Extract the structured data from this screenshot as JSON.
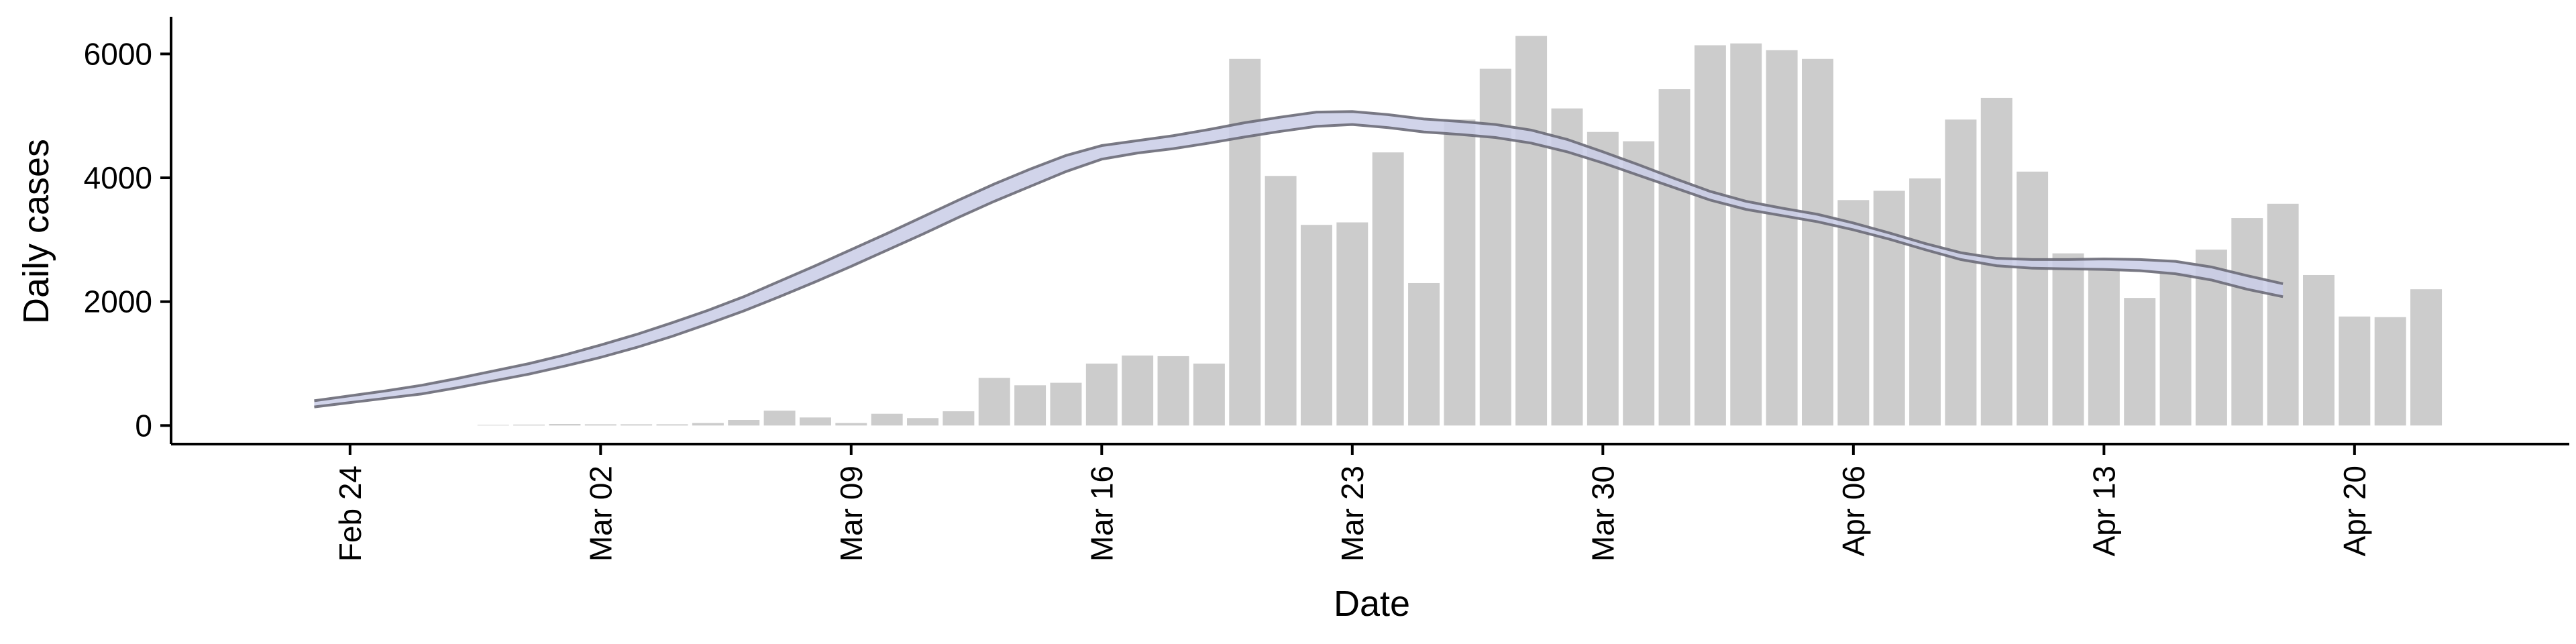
{
  "chart_data": {
    "type": "bar",
    "title": "",
    "xlabel": "Date",
    "ylabel": "Daily cases",
    "ylim": [
      -300,
      6600
    ],
    "yticks": [
      0,
      2000,
      4000,
      6000
    ],
    "x_range": [
      "2020-02-19",
      "2020-04-26"
    ],
    "x_ticks": [
      {
        "date": "2020-02-24",
        "label": "Feb 24"
      },
      {
        "date": "2020-03-02",
        "label": "Mar 02"
      },
      {
        "date": "2020-03-09",
        "label": "Mar 09"
      },
      {
        "date": "2020-03-16",
        "label": "Mar 16"
      },
      {
        "date": "2020-03-23",
        "label": "Mar 23"
      },
      {
        "date": "2020-03-30",
        "label": "Mar 30"
      },
      {
        "date": "2020-04-06",
        "label": "Apr 06"
      },
      {
        "date": "2020-04-13",
        "label": "Apr 13"
      },
      {
        "date": "2020-04-20",
        "label": "Apr 20"
      }
    ],
    "grid": false,
    "legend": "none",
    "colors": {
      "bars": "#cccccc",
      "band_fill": "#c9cde6",
      "band_edge": "#6b6b78",
      "axis": "#000000"
    },
    "bars": {
      "start_date": "2020-02-28",
      "values": [
        10,
        15,
        25,
        20,
        20,
        20,
        40,
        90,
        240,
        130,
        40,
        190,
        120,
        230,
        770,
        650,
        690,
        1000,
        1130,
        1120,
        1000,
        5920,
        4030,
        3240,
        3280,
        4410,
        2300,
        4940,
        5760,
        6290,
        5120,
        4740,
        4590,
        5430,
        6140,
        6170,
        6060,
        5920,
        3640,
        3790,
        3990,
        4940,
        5290,
        4100,
        2780,
        2510,
        2060,
        2460,
        2840,
        3350,
        3580,
        2430,
        1760,
        1750,
        2200
      ]
    },
    "estimate_band": {
      "start_date": "2020-02-23",
      "upper": [
        400,
        480,
        560,
        650,
        760,
        880,
        1000,
        1140,
        1300,
        1470,
        1660,
        1860,
        2080,
        2330,
        2580,
        2840,
        3100,
        3370,
        3640,
        3900,
        4140,
        4360,
        4520,
        4600,
        4680,
        4780,
        4890,
        4980,
        5060,
        5070,
        5020,
        4950,
        4910,
        4860,
        4770,
        4620,
        4420,
        4210,
        3990,
        3780,
        3620,
        3510,
        3410,
        3270,
        3110,
        2940,
        2790,
        2700,
        2680,
        2680,
        2690,
        2680,
        2650,
        2560,
        2420,
        2290
      ],
      "lower": [
        300,
        370,
        440,
        510,
        610,
        720,
        830,
        960,
        1100,
        1260,
        1440,
        1640,
        1850,
        2080,
        2320,
        2570,
        2830,
        3090,
        3360,
        3620,
        3860,
        4100,
        4300,
        4400,
        4470,
        4560,
        4660,
        4750,
        4830,
        4860,
        4810,
        4740,
        4700,
        4650,
        4560,
        4420,
        4240,
        4040,
        3840,
        3640,
        3490,
        3390,
        3290,
        3160,
        3010,
        2840,
        2680,
        2580,
        2540,
        2530,
        2520,
        2500,
        2450,
        2350,
        2200,
        2080
      ]
    }
  }
}
